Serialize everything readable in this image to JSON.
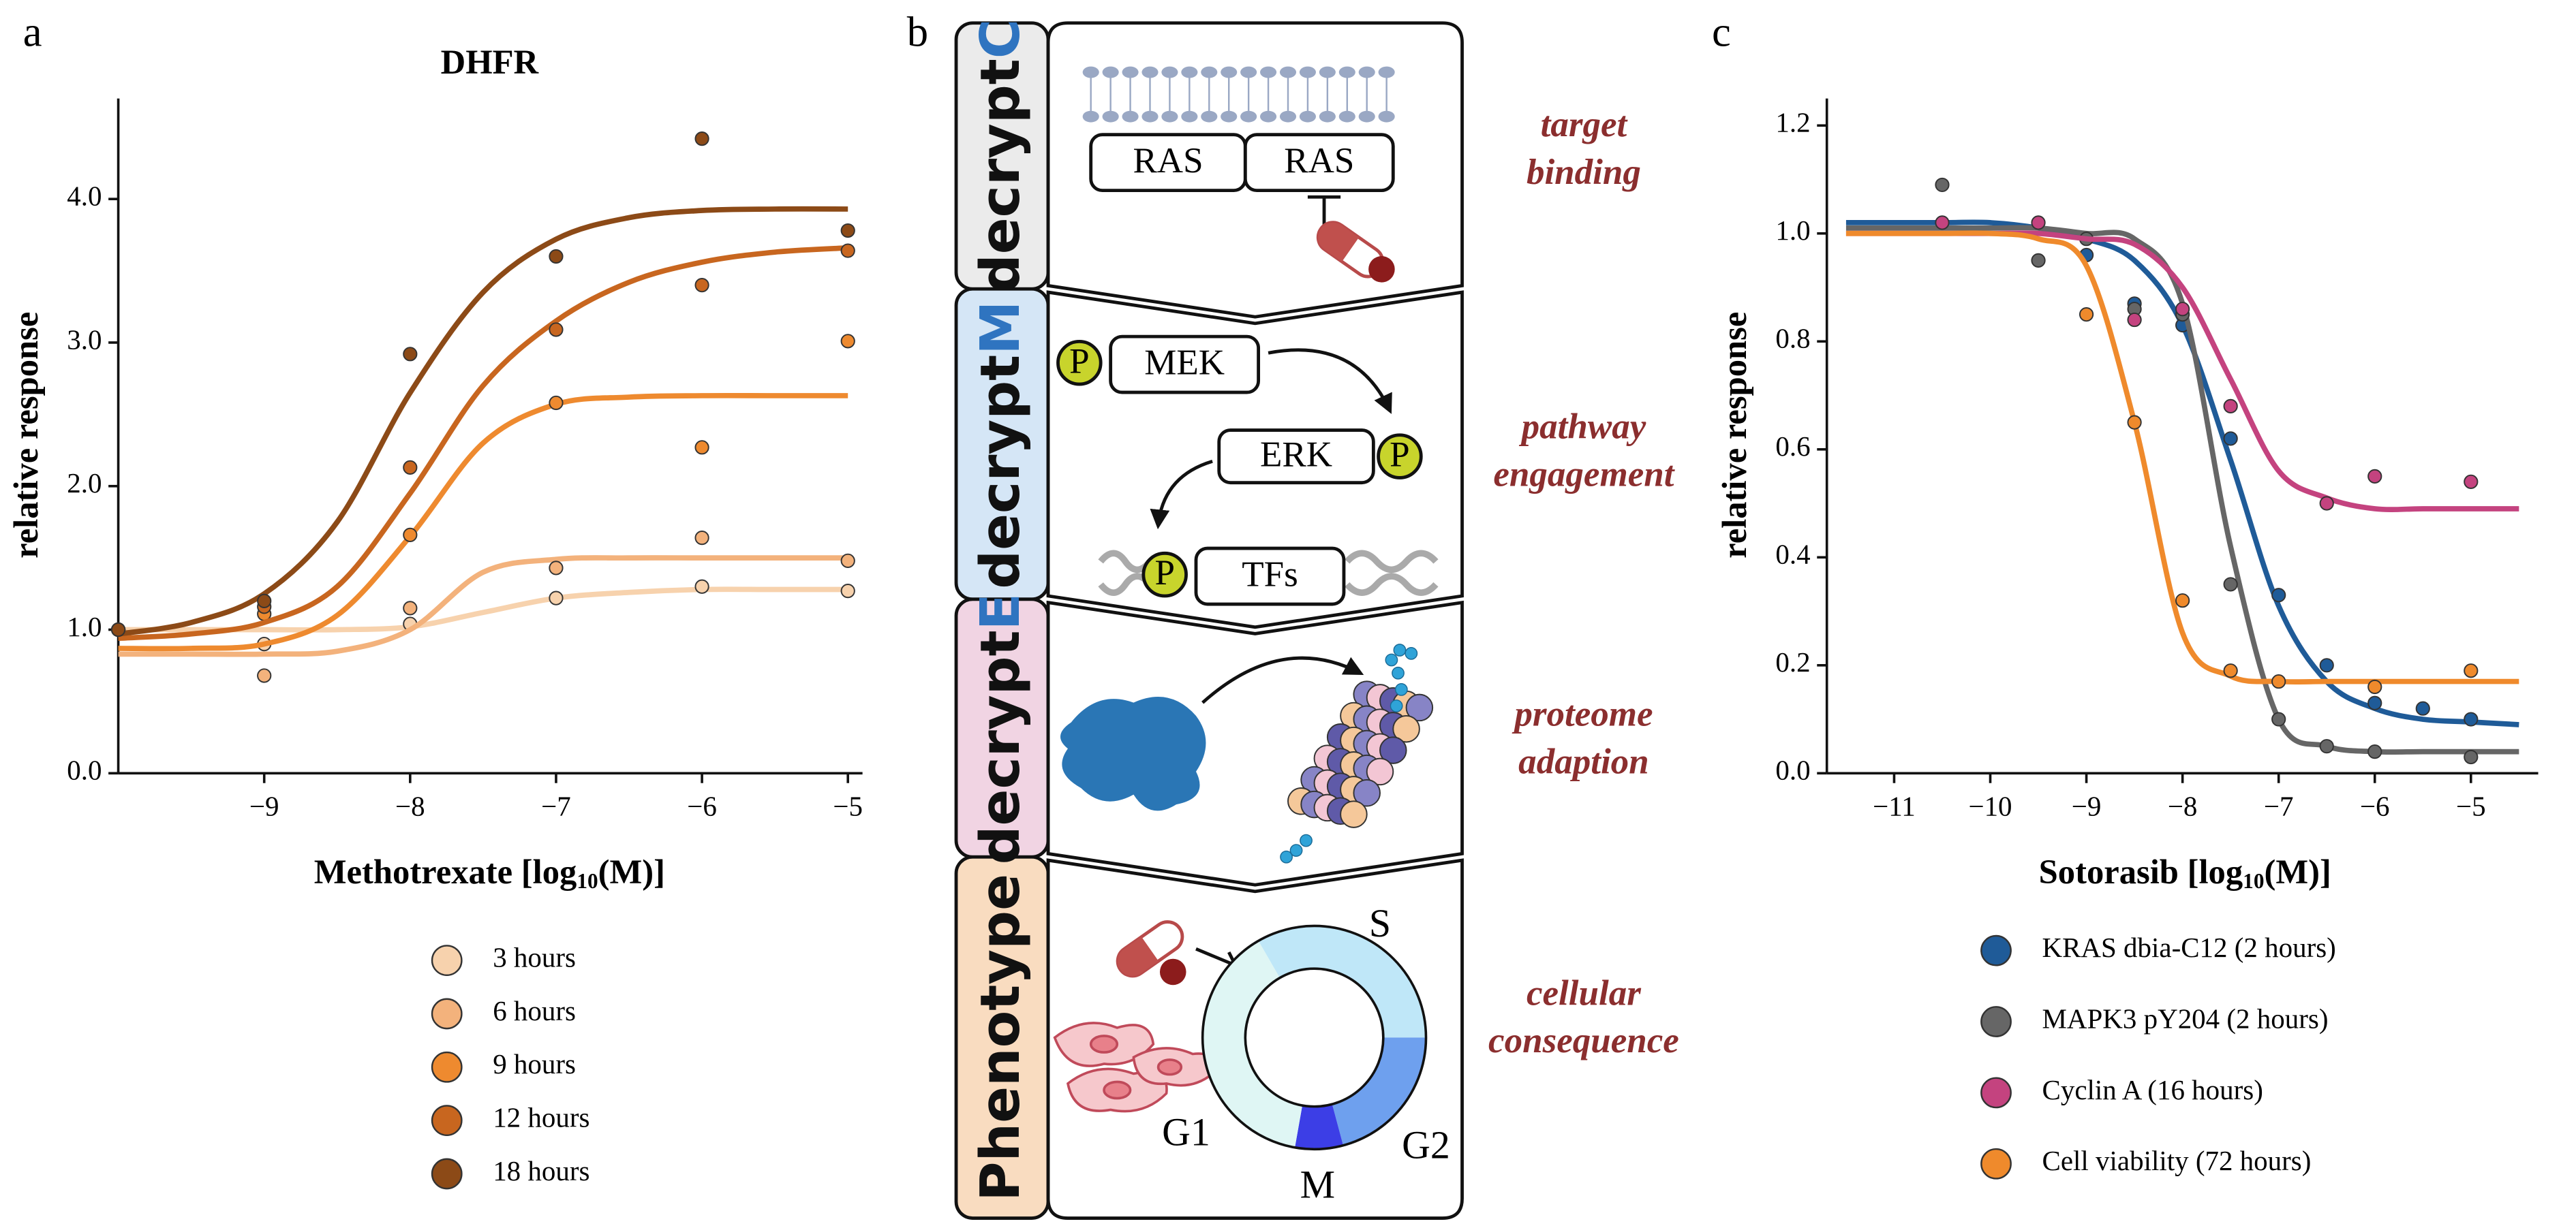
{
  "panel_labels": [
    "a",
    "b",
    "c"
  ],
  "chart_data": [
    {
      "type": "scatter",
      "title": "DHFR",
      "ylabel": "relative response",
      "xlabel": [
        "Methotrexate [log",
        "10",
        "(M)]"
      ],
      "xlim": [
        -10,
        -4.9
      ],
      "ylim": [
        0,
        4.7
      ],
      "xticks": [
        {
          "value": -9,
          "label": "−9"
        },
        {
          "value": -8,
          "label": "−8"
        },
        {
          "value": -7,
          "label": "−7"
        },
        {
          "value": -6,
          "label": "−6"
        },
        {
          "value": -5,
          "label": "−5"
        }
      ],
      "yticks": [
        {
          "value": 0,
          "label": "0.0"
        },
        {
          "value": 1,
          "label": "1.0"
        },
        {
          "value": 2,
          "label": "2.0"
        },
        {
          "value": 3,
          "label": "3.0"
        },
        {
          "value": 4,
          "label": "4.0"
        }
      ],
      "grid": false,
      "legend": "bottom",
      "fit_x": [
        -10,
        -9.5,
        -9,
        -8.5,
        -8,
        -7.5,
        -7,
        -6.5,
        -6,
        -5.5,
        -5
      ],
      "series": [
        {
          "name": "3 hours",
          "color": "#f7d2ad",
          "x": [
            -10,
            -9,
            -8,
            -7,
            -6,
            -5
          ],
          "values": [
            1.0,
            0.9,
            1.04,
            1.22,
            1.3,
            1.27
          ],
          "fit": [
            1.0,
            1.0,
            1.0,
            1.0,
            1.02,
            1.12,
            1.22,
            1.26,
            1.28,
            1.28,
            1.28
          ]
        },
        {
          "name": "6 hours",
          "color": "#f3b27c",
          "x": [
            -10,
            -9,
            -8,
            -7,
            -6,
            -5
          ],
          "values": [
            1.0,
            0.68,
            1.15,
            1.43,
            1.64,
            1.48
          ],
          "fit": [
            0.83,
            0.83,
            0.83,
            0.85,
            1.0,
            1.4,
            1.49,
            1.5,
            1.5,
            1.5,
            1.5
          ]
        },
        {
          "name": "9 hours",
          "color": "#ee8a2f",
          "x": [
            -10,
            -9,
            -8,
            -7,
            -6,
            -5
          ],
          "values": [
            1.0,
            1.11,
            1.66,
            2.58,
            2.27,
            3.01
          ],
          "fit": [
            0.87,
            0.87,
            0.9,
            1.1,
            1.65,
            2.3,
            2.57,
            2.62,
            2.63,
            2.63,
            2.63
          ]
        },
        {
          "name": "12 hours",
          "color": "#c8661f",
          "x": [
            -10,
            -9,
            -8,
            -7,
            -6,
            -5
          ],
          "values": [
            1.0,
            1.16,
            2.13,
            3.09,
            3.4,
            3.64
          ],
          "fit": [
            0.94,
            0.97,
            1.05,
            1.3,
            1.95,
            2.7,
            3.15,
            3.42,
            3.56,
            3.63,
            3.66
          ]
        },
        {
          "name": "18 hours",
          "color": "#8c4a17",
          "x": [
            -10,
            -9,
            -8,
            -7,
            -6,
            -5
          ],
          "values": [
            1.0,
            1.2,
            2.92,
            3.6,
            4.42,
            3.78
          ],
          "fit": [
            0.97,
            1.05,
            1.25,
            1.75,
            2.65,
            3.35,
            3.72,
            3.87,
            3.92,
            3.93,
            3.93
          ]
        }
      ]
    },
    {
      "type": "scatter",
      "ylabel": "relative response",
      "xlabel": [
        "Sotorasib [log",
        "10",
        "(M)]"
      ],
      "xlim": [
        -11.7,
        -4.3
      ],
      "ylim": [
        0,
        1.25
      ],
      "xticks": [
        {
          "value": -11,
          "label": "−11"
        },
        {
          "value": -10,
          "label": "−10"
        },
        {
          "value": -9,
          "label": "−9"
        },
        {
          "value": -8,
          "label": "−8"
        },
        {
          "value": -7,
          "label": "−7"
        },
        {
          "value": -6,
          "label": "−6"
        },
        {
          "value": -5,
          "label": "−5"
        }
      ],
      "yticks": [
        {
          "value": 0,
          "label": "0.0"
        },
        {
          "value": 0.2,
          "label": "0.2"
        },
        {
          "value": 0.4,
          "label": "0.4"
        },
        {
          "value": 0.6,
          "label": "0.6"
        },
        {
          "value": 0.8,
          "label": "0.8"
        },
        {
          "value": 1,
          "label": "1.0"
        },
        {
          "value": 1.2,
          "label": "1.2"
        }
      ],
      "grid": false,
      "legend": "bottom",
      "fit_x": [
        -11.5,
        -11,
        -10.5,
        -10,
        -9.5,
        -9,
        -8.5,
        -8,
        -7.5,
        -7,
        -6.5,
        -6,
        -5.5,
        -5,
        -4.5
      ],
      "series": [
        {
          "name": "KRAS dbia-C12 (2 hours)",
          "color": "#1f5b98",
          "x": [
            -9,
            -8.5,
            -8,
            -7.5,
            -7,
            -6.5,
            -6,
            -5.5,
            -5
          ],
          "values": [
            0.96,
            0.87,
            0.83,
            0.62,
            0.33,
            0.2,
            0.13,
            0.12,
            0.1
          ],
          "fit": [
            1.02,
            1.02,
            1.02,
            1.02,
            1.01,
            0.99,
            0.95,
            0.83,
            0.58,
            0.31,
            0.17,
            0.12,
            0.1,
            0.095,
            0.09
          ]
        },
        {
          "name": "MAPK3 pY204 (2 hours)",
          "color": "#666666",
          "x": [
            -10.5,
            -9.5,
            -9,
            -8.5,
            -8,
            -7.5,
            -7,
            -6.5,
            -6,
            -5
          ],
          "values": [
            1.09,
            0.95,
            0.99,
            0.86,
            0.85,
            0.35,
            0.1,
            0.05,
            0.04,
            0.03
          ],
          "fit": [
            1.01,
            1.01,
            1.01,
            1.01,
            1.01,
            1.0,
            0.99,
            0.87,
            0.42,
            0.1,
            0.05,
            0.04,
            0.04,
            0.04,
            0.04
          ]
        },
        {
          "name": "Cyclin A (16 hours)",
          "color": "#c4437f",
          "x": [
            -10.5,
            -9.5,
            -8.5,
            -8,
            -7.5,
            -6.5,
            -6,
            -5
          ],
          "values": [
            1.02,
            1.02,
            0.84,
            0.86,
            0.68,
            0.5,
            0.55,
            0.54
          ],
          "fit": [
            1.0,
            1.0,
            1.0,
            1.0,
            1.0,
            0.99,
            0.98,
            0.9,
            0.73,
            0.56,
            0.51,
            0.49,
            0.49,
            0.49,
            0.49
          ]
        },
        {
          "name": "Cell viability (72 hours)",
          "color": "#ef8a2c",
          "x": [
            -9,
            -8.5,
            -8,
            -7.5,
            -7,
            -6,
            -5
          ],
          "values": [
            0.85,
            0.65,
            0.32,
            0.19,
            0.17,
            0.16,
            0.19
          ],
          "fit": [
            1.0,
            1.0,
            1.0,
            1.0,
            0.99,
            0.94,
            0.65,
            0.26,
            0.18,
            0.17,
            0.17,
            0.17,
            0.17,
            0.17,
            0.17
          ]
        }
      ]
    }
  ],
  "diagram": {
    "tabs": [
      {
        "prefix": "decrypt",
        "suffix": "C"
      },
      {
        "prefix": "decrypt",
        "suffix": "M"
      },
      {
        "prefix": "decrypt",
        "suffix": "E"
      },
      {
        "prefix": "Phenotype"
      }
    ],
    "stages": [
      [
        "target",
        "binding"
      ],
      [
        "pathway",
        "engagement"
      ],
      [
        "proteome",
        "adaption"
      ],
      [
        "cellular",
        "consequence"
      ]
    ],
    "labels": {
      "ras": [
        "RAS",
        "RAS"
      ],
      "mek": "MEK",
      "erk": "ERK",
      "phospho": "P",
      "tfs": "TFs",
      "phases": [
        "S",
        "G2",
        "M",
        "G1"
      ]
    }
  }
}
